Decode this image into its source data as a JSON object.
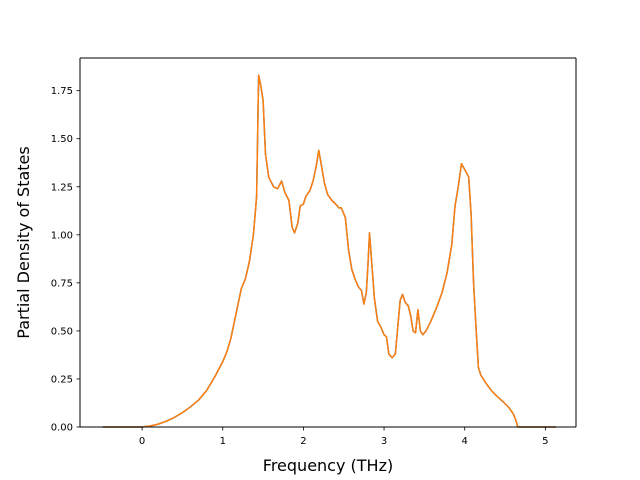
{
  "chart_data": {
    "type": "line",
    "title": "",
    "xlabel": "Frequency (THz)",
    "ylabel": "Partial Density of States",
    "xlim": [
      -0.77,
      5.38
    ],
    "ylim": [
      0,
      1.92
    ],
    "xticks": [
      0,
      1,
      2,
      3,
      4,
      5
    ],
    "yticks": [
      0.0,
      0.25,
      0.5,
      0.75,
      1.0,
      1.25,
      1.5,
      1.75
    ],
    "xtick_labels": [
      "0",
      "1",
      "2",
      "3",
      "4",
      "5"
    ],
    "ytick_labels": [
      "0.00",
      "0.25",
      "0.50",
      "0.75",
      "1.00",
      "1.25",
      "1.50",
      "1.75"
    ],
    "grid": false,
    "legend": "none",
    "series": [
      {
        "color": "#1f77b4",
        "points": [
          [
            -0.48,
            0
          ],
          [
            0.0,
            0
          ],
          [
            0.1,
            0.005
          ],
          [
            0.2,
            0.015
          ],
          [
            0.3,
            0.03
          ],
          [
            0.4,
            0.05
          ],
          [
            0.5,
            0.075
          ],
          [
            0.6,
            0.105
          ],
          [
            0.7,
            0.14
          ],
          [
            0.8,
            0.19
          ],
          [
            0.9,
            0.26
          ],
          [
            1.0,
            0.34
          ],
          [
            1.05,
            0.39
          ],
          [
            1.1,
            0.46
          ],
          [
            1.15,
            0.56
          ],
          [
            1.2,
            0.66
          ],
          [
            1.23,
            0.72
          ],
          [
            1.28,
            0.77
          ],
          [
            1.33,
            0.86
          ],
          [
            1.38,
            1.0
          ],
          [
            1.42,
            1.2
          ],
          [
            1.445,
            1.83
          ],
          [
            1.47,
            1.78
          ],
          [
            1.5,
            1.7
          ],
          [
            1.53,
            1.42
          ],
          [
            1.57,
            1.3
          ],
          [
            1.63,
            1.25
          ],
          [
            1.68,
            1.24
          ],
          [
            1.73,
            1.28
          ],
          [
            1.77,
            1.22
          ],
          [
            1.82,
            1.18
          ],
          [
            1.86,
            1.04
          ],
          [
            1.89,
            1.01
          ],
          [
            1.93,
            1.06
          ],
          [
            1.96,
            1.15
          ],
          [
            2.0,
            1.16
          ],
          [
            2.03,
            1.2
          ],
          [
            2.08,
            1.23
          ],
          [
            2.12,
            1.28
          ],
          [
            2.16,
            1.36
          ],
          [
            2.19,
            1.44
          ],
          [
            2.22,
            1.37
          ],
          [
            2.26,
            1.27
          ],
          [
            2.3,
            1.21
          ],
          [
            2.35,
            1.18
          ],
          [
            2.4,
            1.16
          ],
          [
            2.44,
            1.14
          ],
          [
            2.47,
            1.14
          ],
          [
            2.52,
            1.09
          ],
          [
            2.56,
            0.92
          ],
          [
            2.6,
            0.82
          ],
          [
            2.64,
            0.77
          ],
          [
            2.68,
            0.73
          ],
          [
            2.72,
            0.71
          ],
          [
            2.75,
            0.64
          ],
          [
            2.78,
            0.7
          ],
          [
            2.8,
            0.84
          ],
          [
            2.82,
            1.01
          ],
          [
            2.85,
            0.84
          ],
          [
            2.88,
            0.67
          ],
          [
            2.92,
            0.55
          ],
          [
            2.96,
            0.52
          ],
          [
            3.0,
            0.48
          ],
          [
            3.03,
            0.47
          ],
          [
            3.06,
            0.38
          ],
          [
            3.1,
            0.36
          ],
          [
            3.14,
            0.38
          ],
          [
            3.17,
            0.52
          ],
          [
            3.2,
            0.66
          ],
          [
            3.23,
            0.69
          ],
          [
            3.26,
            0.65
          ],
          [
            3.3,
            0.63
          ],
          [
            3.33,
            0.58
          ],
          [
            3.36,
            0.5
          ],
          [
            3.39,
            0.49
          ],
          [
            3.42,
            0.61
          ],
          [
            3.45,
            0.5
          ],
          [
            3.48,
            0.48
          ],
          [
            3.52,
            0.5
          ],
          [
            3.58,
            0.55
          ],
          [
            3.65,
            0.62
          ],
          [
            3.72,
            0.7
          ],
          [
            3.78,
            0.8
          ],
          [
            3.84,
            0.95
          ],
          [
            3.88,
            1.15
          ],
          [
            3.92,
            1.25
          ],
          [
            3.96,
            1.37
          ],
          [
            4.0,
            1.34
          ],
          [
            4.05,
            1.3
          ],
          [
            4.08,
            1.1
          ],
          [
            4.11,
            0.75
          ],
          [
            4.14,
            0.52
          ],
          [
            4.17,
            0.31
          ],
          [
            4.2,
            0.27
          ],
          [
            4.26,
            0.23
          ],
          [
            4.33,
            0.19
          ],
          [
            4.4,
            0.16
          ],
          [
            4.48,
            0.13
          ],
          [
            4.55,
            0.1
          ],
          [
            4.6,
            0.07
          ],
          [
            4.63,
            0.04
          ],
          [
            4.66,
            0
          ],
          [
            5.12,
            0
          ]
        ]
      },
      {
        "color": "#ff7f0e",
        "points": [
          [
            -0.48,
            0
          ],
          [
            0.0,
            0
          ],
          [
            0.1,
            0.005
          ],
          [
            0.2,
            0.015
          ],
          [
            0.3,
            0.03
          ],
          [
            0.4,
            0.05
          ],
          [
            0.5,
            0.075
          ],
          [
            0.6,
            0.105
          ],
          [
            0.7,
            0.14
          ],
          [
            0.8,
            0.19
          ],
          [
            0.9,
            0.26
          ],
          [
            1.0,
            0.34
          ],
          [
            1.05,
            0.39
          ],
          [
            1.1,
            0.46
          ],
          [
            1.15,
            0.56
          ],
          [
            1.2,
            0.66
          ],
          [
            1.23,
            0.72
          ],
          [
            1.28,
            0.77
          ],
          [
            1.33,
            0.86
          ],
          [
            1.38,
            1.0
          ],
          [
            1.42,
            1.2
          ],
          [
            1.445,
            1.83
          ],
          [
            1.47,
            1.78
          ],
          [
            1.5,
            1.7
          ],
          [
            1.53,
            1.42
          ],
          [
            1.57,
            1.3
          ],
          [
            1.63,
            1.25
          ],
          [
            1.68,
            1.24
          ],
          [
            1.73,
            1.28
          ],
          [
            1.77,
            1.22
          ],
          [
            1.82,
            1.18
          ],
          [
            1.86,
            1.04
          ],
          [
            1.89,
            1.01
          ],
          [
            1.93,
            1.06
          ],
          [
            1.96,
            1.15
          ],
          [
            2.0,
            1.16
          ],
          [
            2.03,
            1.2
          ],
          [
            2.08,
            1.23
          ],
          [
            2.12,
            1.28
          ],
          [
            2.16,
            1.36
          ],
          [
            2.19,
            1.44
          ],
          [
            2.22,
            1.37
          ],
          [
            2.26,
            1.27
          ],
          [
            2.3,
            1.21
          ],
          [
            2.35,
            1.18
          ],
          [
            2.4,
            1.16
          ],
          [
            2.44,
            1.14
          ],
          [
            2.47,
            1.14
          ],
          [
            2.52,
            1.09
          ],
          [
            2.56,
            0.92
          ],
          [
            2.6,
            0.82
          ],
          [
            2.64,
            0.77
          ],
          [
            2.68,
            0.73
          ],
          [
            2.72,
            0.71
          ],
          [
            2.75,
            0.64
          ],
          [
            2.78,
            0.7
          ],
          [
            2.8,
            0.84
          ],
          [
            2.82,
            1.01
          ],
          [
            2.85,
            0.84
          ],
          [
            2.88,
            0.67
          ],
          [
            2.92,
            0.55
          ],
          [
            2.96,
            0.52
          ],
          [
            3.0,
            0.48
          ],
          [
            3.03,
            0.47
          ],
          [
            3.06,
            0.38
          ],
          [
            3.1,
            0.36
          ],
          [
            3.14,
            0.38
          ],
          [
            3.17,
            0.52
          ],
          [
            3.2,
            0.66
          ],
          [
            3.23,
            0.69
          ],
          [
            3.26,
            0.65
          ],
          [
            3.3,
            0.63
          ],
          [
            3.33,
            0.58
          ],
          [
            3.36,
            0.5
          ],
          [
            3.39,
            0.49
          ],
          [
            3.42,
            0.61
          ],
          [
            3.45,
            0.5
          ],
          [
            3.48,
            0.48
          ],
          [
            3.52,
            0.5
          ],
          [
            3.58,
            0.55
          ],
          [
            3.65,
            0.62
          ],
          [
            3.72,
            0.7
          ],
          [
            3.78,
            0.8
          ],
          [
            3.84,
            0.95
          ],
          [
            3.88,
            1.15
          ],
          [
            3.92,
            1.25
          ],
          [
            3.96,
            1.37
          ],
          [
            4.0,
            1.34
          ],
          [
            4.05,
            1.3
          ],
          [
            4.08,
            1.1
          ],
          [
            4.11,
            0.75
          ],
          [
            4.14,
            0.52
          ],
          [
            4.17,
            0.31
          ],
          [
            4.2,
            0.27
          ],
          [
            4.26,
            0.23
          ],
          [
            4.33,
            0.19
          ],
          [
            4.4,
            0.16
          ],
          [
            4.48,
            0.13
          ],
          [
            4.55,
            0.1
          ],
          [
            4.6,
            0.07
          ],
          [
            4.63,
            0.04
          ],
          [
            4.66,
            0
          ],
          [
            5.12,
            0
          ]
        ]
      }
    ]
  }
}
